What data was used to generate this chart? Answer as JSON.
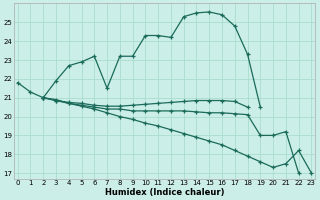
{
  "xlabel": "Humidex (Indice chaleur)",
  "bg_color": "#cceee8",
  "grid_color": "#aaddcc",
  "line_color": "#1a6b5a",
  "xlim": [
    -0.3,
    23.3
  ],
  "ylim": [
    16.7,
    26.0
  ],
  "yticks": [
    17,
    18,
    19,
    20,
    21,
    22,
    23,
    24,
    25
  ],
  "xticks": [
    0,
    1,
    2,
    3,
    4,
    5,
    6,
    7,
    8,
    9,
    10,
    11,
    12,
    13,
    14,
    15,
    16,
    17,
    18,
    19,
    20,
    21,
    22,
    23
  ],
  "curves": [
    {
      "x": [
        0,
        1,
        2,
        3,
        4,
        5,
        6,
        7,
        8,
        9,
        10,
        11,
        12,
        13,
        14,
        15,
        16,
        17,
        18,
        19
      ],
      "y": [
        21.8,
        21.3,
        21.0,
        21.9,
        22.7,
        22.9,
        23.2,
        21.5,
        23.2,
        23.2,
        24.3,
        24.3,
        24.2,
        25.3,
        25.5,
        25.55,
        25.4,
        24.8,
        23.3,
        20.5
      ]
    },
    {
      "x": [
        2,
        3,
        4,
        5,
        6,
        7,
        8,
        9,
        10,
        11,
        12,
        13,
        14,
        15,
        16,
        17,
        18
      ],
      "y": [
        21.0,
        20.85,
        20.75,
        20.7,
        20.6,
        20.55,
        20.55,
        20.6,
        20.65,
        20.7,
        20.75,
        20.8,
        20.85,
        20.85,
        20.85,
        20.8,
        20.5
      ]
    },
    {
      "x": [
        2,
        3,
        4,
        5,
        6,
        7,
        8,
        9,
        10,
        11,
        12,
        13,
        14,
        15,
        16,
        17,
        18,
        19,
        20,
        21,
        22
      ],
      "y": [
        21.0,
        20.9,
        20.7,
        20.6,
        20.5,
        20.4,
        20.4,
        20.3,
        20.3,
        20.3,
        20.3,
        20.3,
        20.25,
        20.2,
        20.2,
        20.15,
        20.1,
        19.0,
        19.0,
        19.2,
        17.0
      ]
    },
    {
      "x": [
        2,
        3,
        4,
        5,
        6,
        7,
        8,
        9,
        10,
        11,
        12,
        13,
        14,
        15,
        16,
        17,
        18,
        19,
        20,
        21,
        22,
        23
      ],
      "y": [
        21.0,
        20.85,
        20.7,
        20.55,
        20.4,
        20.2,
        20.0,
        19.85,
        19.65,
        19.5,
        19.3,
        19.1,
        18.9,
        18.7,
        18.5,
        18.2,
        17.9,
        17.6,
        17.3,
        17.5,
        18.2,
        17.0
      ]
    }
  ]
}
